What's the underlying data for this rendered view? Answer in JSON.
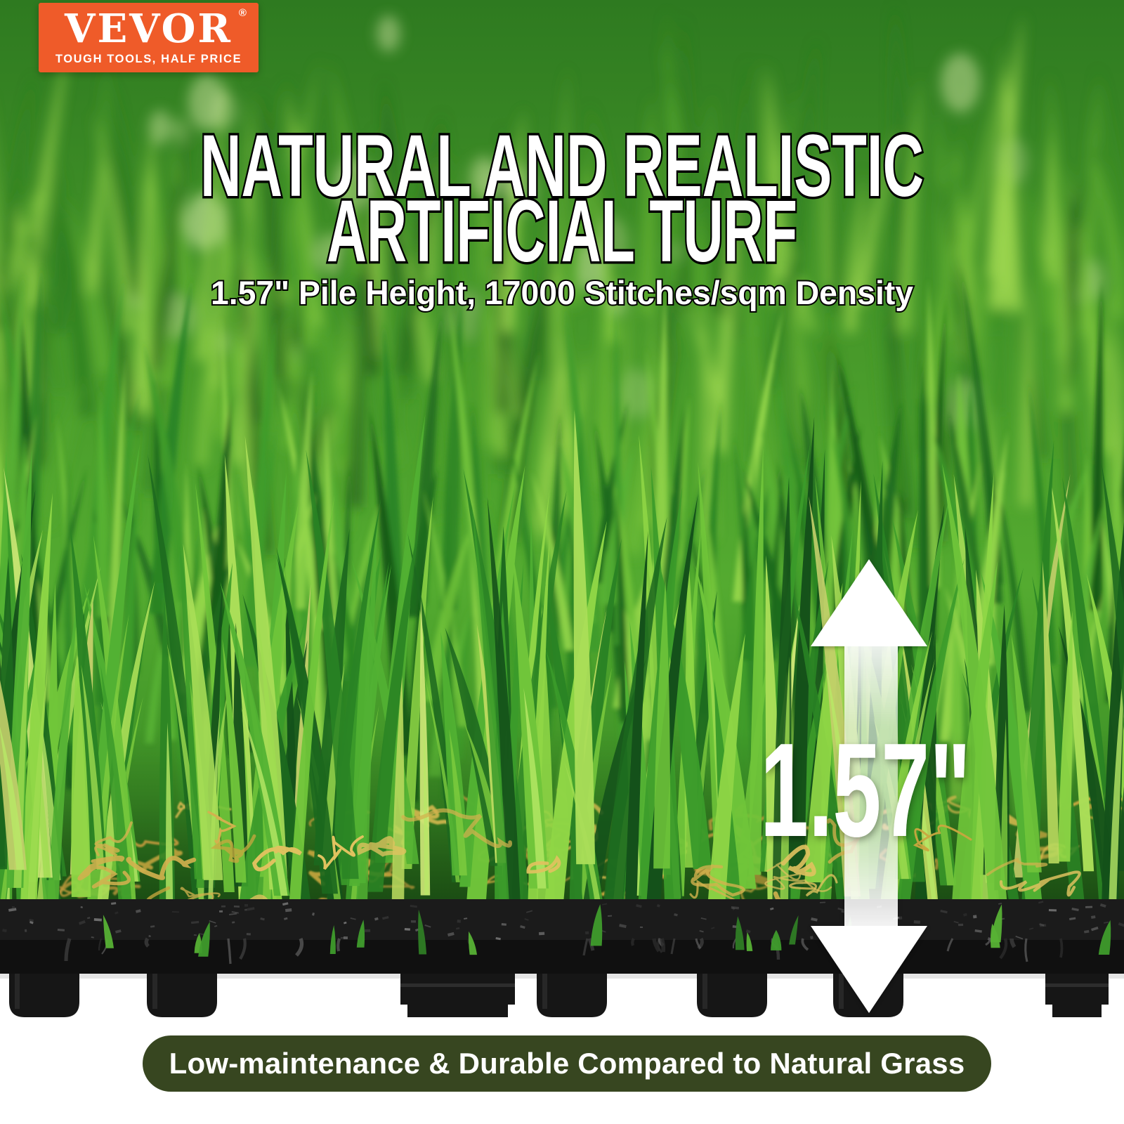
{
  "brand": {
    "name": "VEVOR",
    "registered_mark": "®",
    "tagline": "TOUGH TOOLS, HALF PRICE",
    "color": "#ef5b29"
  },
  "headline": {
    "line1": "NATURAL AND REALISTIC",
    "line2": "ARTIFICIAL TURF"
  },
  "subtitle": "1.57\" Pile Height, 17000 Stitches/sqm Density",
  "measurement": {
    "label": "1.57\""
  },
  "footer_banner": {
    "text": "Low-maintenance & Durable Compared to Natural Grass",
    "color": "#374620"
  }
}
